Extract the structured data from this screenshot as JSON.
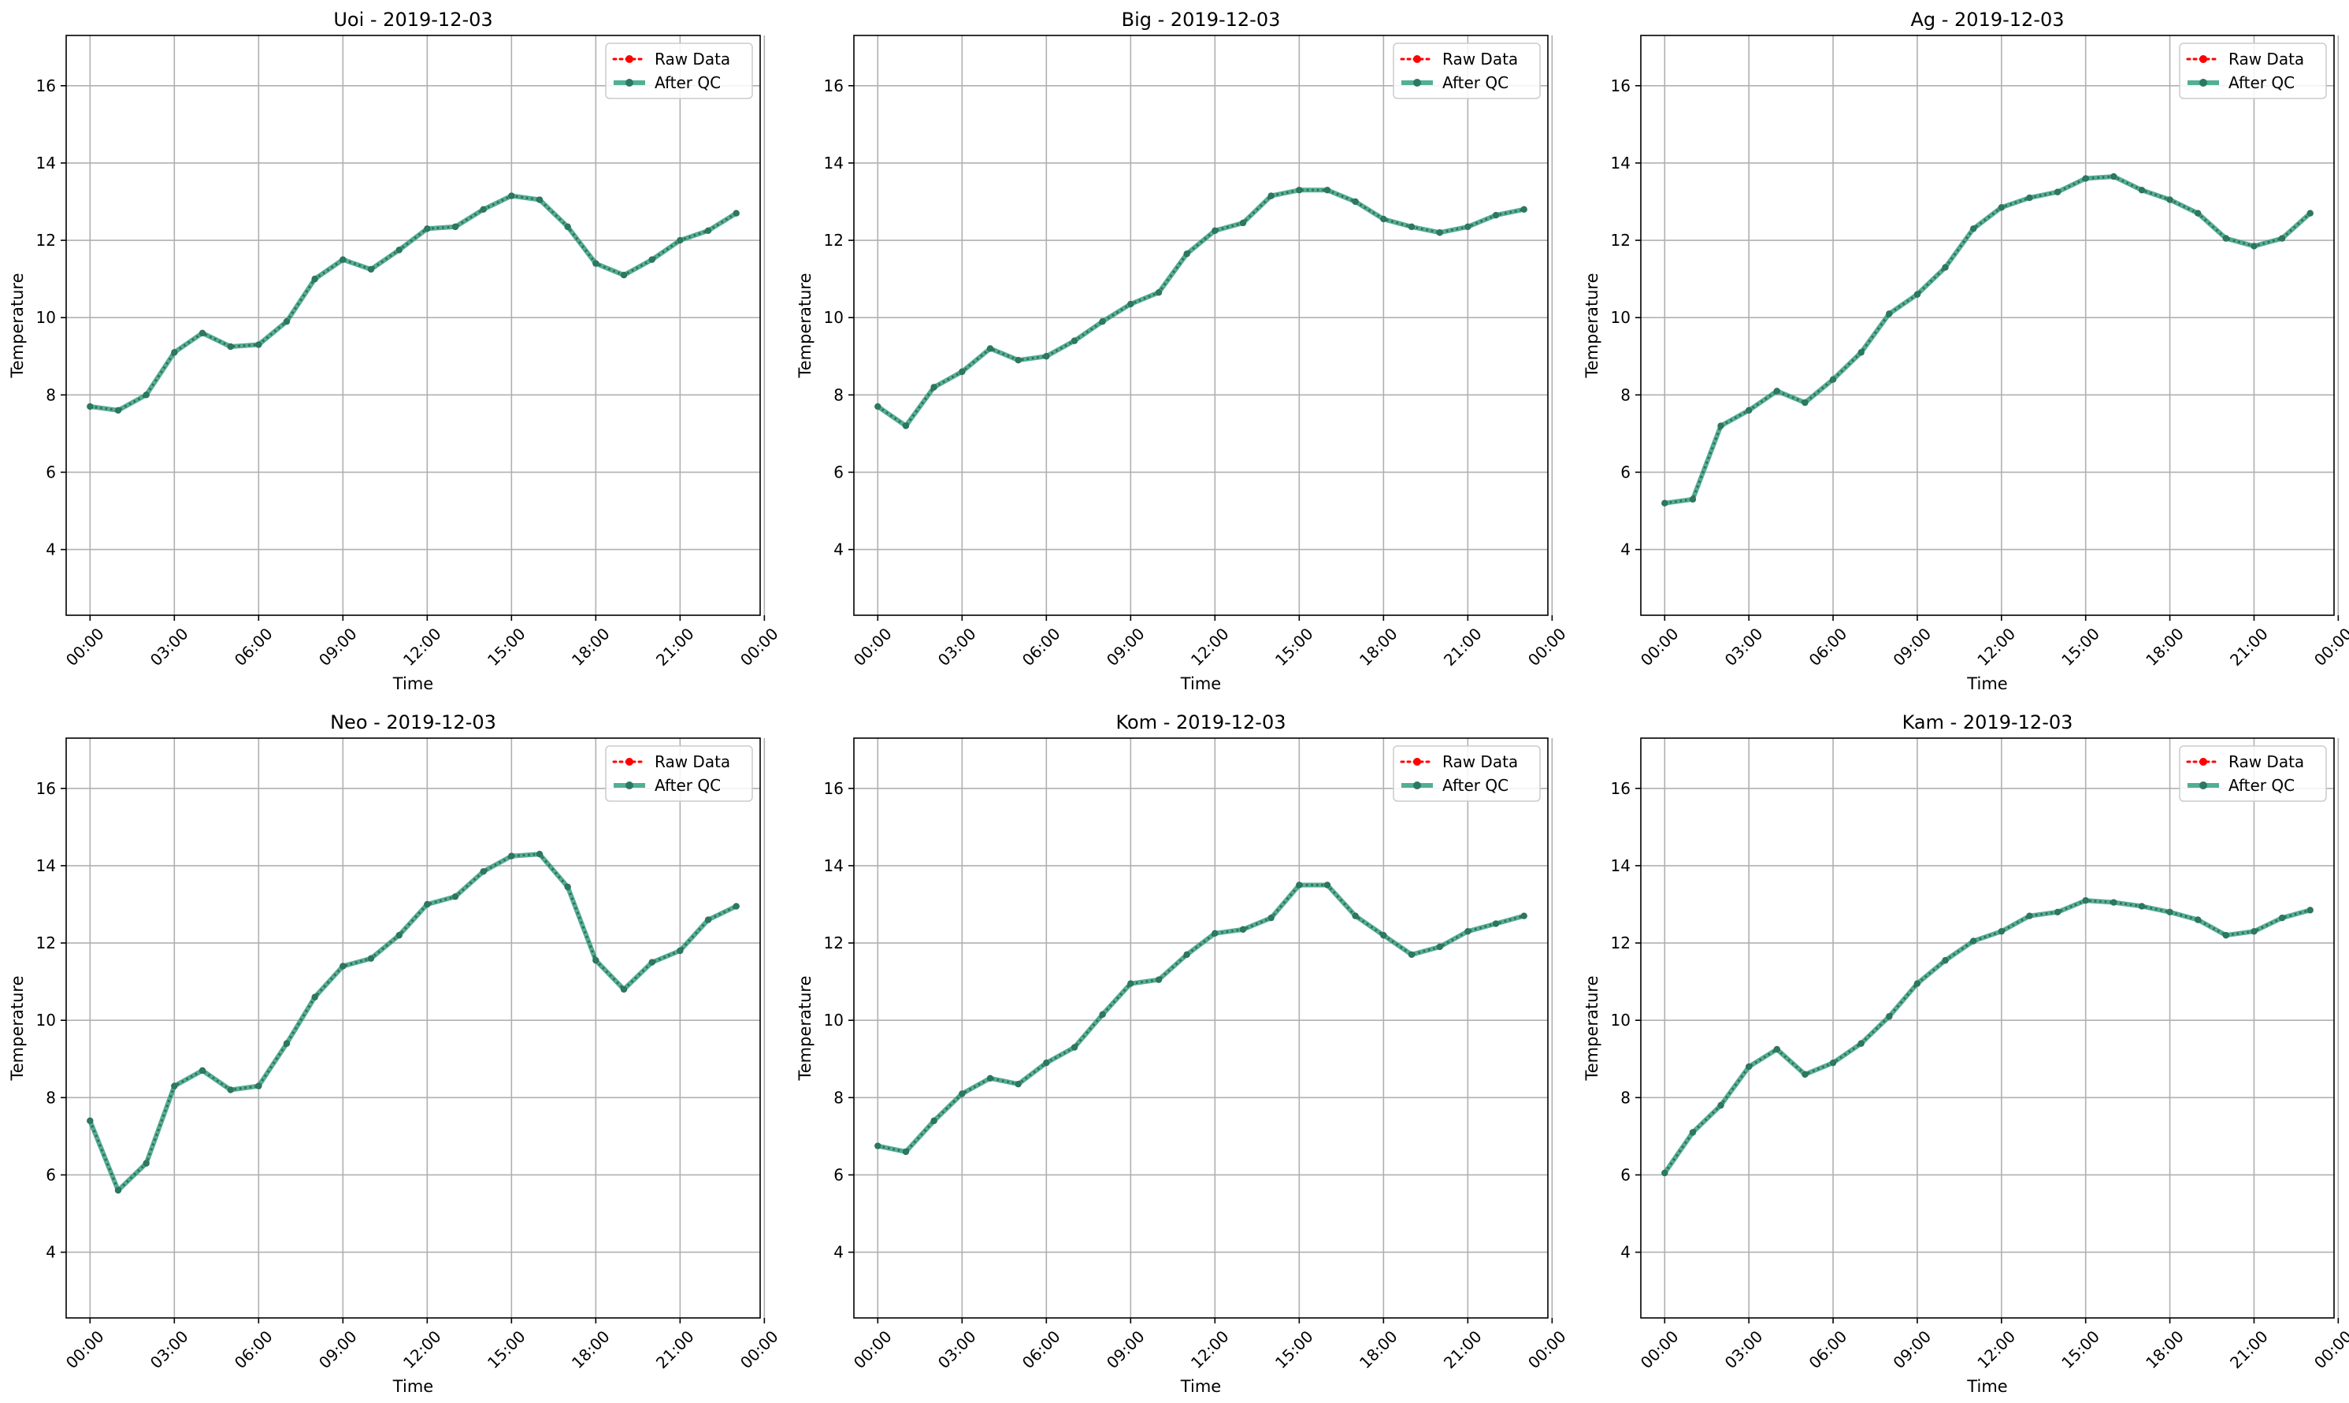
{
  "chart_data": [
    {
      "type": "line",
      "title": "Uoi - 2019-12-03",
      "xlabel": "Time",
      "ylabel": "Temperature",
      "ylim": [
        2.3,
        17.3
      ],
      "xlim": [
        -0.85,
        23.85
      ],
      "yticks": [
        4,
        6,
        8,
        10,
        12,
        14,
        16
      ],
      "xticks": [
        0,
        3,
        6,
        9,
        12,
        15,
        18,
        21,
        24
      ],
      "xtick_labels": [
        "00:00",
        "03:00",
        "06:00",
        "09:00",
        "12:00",
        "15:00",
        "18:00",
        "21:00",
        "00:00"
      ],
      "grid": true,
      "legend_position": "top-right",
      "x": [
        0,
        1,
        2,
        3,
        4,
        5,
        6,
        7,
        8,
        9,
        10,
        11,
        12,
        13,
        14,
        15,
        16,
        17,
        18,
        19,
        20,
        21,
        22,
        23
      ],
      "series": [
        {
          "name": "Raw Data",
          "color": "#ff0000",
          "style": "dotted",
          "values": [
            7.7,
            7.6,
            8.0,
            9.1,
            9.6,
            9.25,
            9.3,
            9.9,
            11.0,
            11.5,
            11.25,
            11.75,
            12.3,
            12.35,
            12.8,
            13.15,
            13.05,
            12.35,
            11.4,
            11.1,
            11.5,
            12.0,
            12.25,
            12.7
          ]
        },
        {
          "name": "After QC",
          "color": "#33a183",
          "style": "solid",
          "values": [
            7.7,
            7.6,
            8.0,
            9.1,
            9.6,
            9.25,
            9.3,
            9.9,
            11.0,
            11.5,
            11.25,
            11.75,
            12.3,
            12.35,
            12.8,
            13.15,
            13.05,
            12.35,
            11.4,
            11.1,
            11.5,
            12.0,
            12.25,
            12.7
          ]
        }
      ]
    },
    {
      "type": "line",
      "title": "Big - 2019-12-03",
      "xlabel": "Time",
      "ylabel": "Temperature",
      "ylim": [
        2.3,
        17.3
      ],
      "xlim": [
        -0.85,
        23.85
      ],
      "yticks": [
        4,
        6,
        8,
        10,
        12,
        14,
        16
      ],
      "xticks": [
        0,
        3,
        6,
        9,
        12,
        15,
        18,
        21,
        24
      ],
      "xtick_labels": [
        "00:00",
        "03:00",
        "06:00",
        "09:00",
        "12:00",
        "15:00",
        "18:00",
        "21:00",
        "00:00"
      ],
      "grid": true,
      "legend_position": "top-right",
      "x": [
        0,
        1,
        2,
        3,
        4,
        5,
        6,
        7,
        8,
        9,
        10,
        11,
        12,
        13,
        14,
        15,
        16,
        17,
        18,
        19,
        20,
        21,
        22,
        23
      ],
      "series": [
        {
          "name": "Raw Data",
          "color": "#ff0000",
          "style": "dotted",
          "values": [
            7.7,
            7.2,
            8.2,
            8.6,
            9.2,
            8.9,
            9.0,
            9.4,
            9.9,
            10.35,
            10.65,
            11.65,
            12.25,
            12.45,
            13.15,
            13.3,
            13.3,
            13.0,
            12.55,
            12.35,
            12.2,
            12.35,
            12.65,
            12.8
          ]
        },
        {
          "name": "After QC",
          "color": "#33a183",
          "style": "solid",
          "values": [
            7.7,
            7.2,
            8.2,
            8.6,
            9.2,
            8.9,
            9.0,
            9.4,
            9.9,
            10.35,
            10.65,
            11.65,
            12.25,
            12.45,
            13.15,
            13.3,
            13.3,
            13.0,
            12.55,
            12.35,
            12.2,
            12.35,
            12.65,
            12.8
          ]
        }
      ]
    },
    {
      "type": "line",
      "title": "Ag - 2019-12-03",
      "xlabel": "Time",
      "ylabel": "Temperature",
      "ylim": [
        2.3,
        17.3
      ],
      "xlim": [
        -0.85,
        23.85
      ],
      "yticks": [
        4,
        6,
        8,
        10,
        12,
        14,
        16
      ],
      "xticks": [
        0,
        3,
        6,
        9,
        12,
        15,
        18,
        21,
        24
      ],
      "xtick_labels": [
        "00:00",
        "03:00",
        "06:00",
        "09:00",
        "12:00",
        "15:00",
        "18:00",
        "21:00",
        "00:00"
      ],
      "grid": true,
      "legend_position": "top-right",
      "x": [
        0,
        1,
        2,
        3,
        4,
        5,
        6,
        7,
        8,
        9,
        10,
        11,
        12,
        13,
        14,
        15,
        16,
        17,
        18,
        19,
        20,
        21,
        22,
        23
      ],
      "series": [
        {
          "name": "Raw Data",
          "color": "#ff0000",
          "style": "dotted",
          "values": [
            5.2,
            5.3,
            7.2,
            7.6,
            8.1,
            7.8,
            8.4,
            9.1,
            10.1,
            10.6,
            11.3,
            12.3,
            12.85,
            13.1,
            13.25,
            13.6,
            13.65,
            13.3,
            13.05,
            12.7,
            12.05,
            11.85,
            12.05,
            12.7
          ]
        },
        {
          "name": "After QC",
          "color": "#33a183",
          "style": "solid",
          "values": [
            5.2,
            5.3,
            7.2,
            7.6,
            8.1,
            7.8,
            8.4,
            9.1,
            10.1,
            10.6,
            11.3,
            12.3,
            12.85,
            13.1,
            13.25,
            13.6,
            13.65,
            13.3,
            13.05,
            12.7,
            12.05,
            11.85,
            12.05,
            12.7
          ]
        }
      ]
    },
    {
      "type": "line",
      "title": "Neo - 2019-12-03",
      "xlabel": "Time",
      "ylabel": "Temperature",
      "ylim": [
        2.3,
        17.3
      ],
      "xlim": [
        -0.85,
        23.85
      ],
      "yticks": [
        4,
        6,
        8,
        10,
        12,
        14,
        16
      ],
      "xticks": [
        0,
        3,
        6,
        9,
        12,
        15,
        18,
        21,
        24
      ],
      "xtick_labels": [
        "00:00",
        "03:00",
        "06:00",
        "09:00",
        "12:00",
        "15:00",
        "18:00",
        "21:00",
        "00:00"
      ],
      "grid": true,
      "legend_position": "top-right",
      "x": [
        0,
        1,
        2,
        3,
        4,
        5,
        6,
        7,
        8,
        9,
        10,
        11,
        12,
        13,
        14,
        15,
        16,
        17,
        18,
        19,
        20,
        21,
        22,
        23
      ],
      "series": [
        {
          "name": "Raw Data",
          "color": "#ff0000",
          "style": "dotted",
          "values": [
            7.4,
            5.6,
            6.3,
            8.3,
            8.7,
            8.2,
            8.3,
            9.4,
            10.6,
            11.4,
            11.6,
            12.2,
            13.0,
            13.2,
            13.85,
            14.25,
            14.3,
            13.45,
            11.55,
            10.8,
            11.5,
            11.8,
            12.6,
            12.95
          ]
        },
        {
          "name": "After QC",
          "color": "#33a183",
          "style": "solid",
          "values": [
            7.4,
            5.6,
            6.3,
            8.3,
            8.7,
            8.2,
            8.3,
            9.4,
            10.6,
            11.4,
            11.6,
            12.2,
            13.0,
            13.2,
            13.85,
            14.25,
            14.3,
            13.45,
            11.55,
            10.8,
            11.5,
            11.8,
            12.6,
            12.95
          ]
        }
      ]
    },
    {
      "type": "line",
      "title": "Kom - 2019-12-03",
      "xlabel": "Time",
      "ylabel": "Temperature",
      "ylim": [
        2.3,
        17.3
      ],
      "xlim": [
        -0.85,
        23.85
      ],
      "yticks": [
        4,
        6,
        8,
        10,
        12,
        14,
        16
      ],
      "xticks": [
        0,
        3,
        6,
        9,
        12,
        15,
        18,
        21,
        24
      ],
      "xtick_labels": [
        "00:00",
        "03:00",
        "06:00",
        "09:00",
        "12:00",
        "15:00",
        "18:00",
        "21:00",
        "00:00"
      ],
      "grid": true,
      "legend_position": "top-right",
      "x": [
        0,
        1,
        2,
        3,
        4,
        5,
        6,
        7,
        8,
        9,
        10,
        11,
        12,
        13,
        14,
        15,
        16,
        17,
        18,
        19,
        20,
        21,
        22,
        23
      ],
      "series": [
        {
          "name": "Raw Data",
          "color": "#ff0000",
          "style": "dotted",
          "values": [
            6.75,
            6.6,
            7.4,
            8.1,
            8.5,
            8.35,
            8.9,
            9.3,
            10.15,
            10.95,
            11.05,
            11.7,
            12.25,
            12.35,
            12.65,
            13.5,
            13.5,
            12.7,
            12.2,
            11.7,
            11.9,
            12.3,
            12.5,
            12.7
          ]
        },
        {
          "name": "After QC",
          "color": "#33a183",
          "style": "solid",
          "values": [
            6.75,
            6.6,
            7.4,
            8.1,
            8.5,
            8.35,
            8.9,
            9.3,
            10.15,
            10.95,
            11.05,
            11.7,
            12.25,
            12.35,
            12.65,
            13.5,
            13.5,
            12.7,
            12.2,
            11.7,
            11.9,
            12.3,
            12.5,
            12.7
          ]
        }
      ]
    },
    {
      "type": "line",
      "title": "Kam - 2019-12-03",
      "xlabel": "Time",
      "ylabel": "Temperature",
      "ylim": [
        2.3,
        17.3
      ],
      "xlim": [
        -0.85,
        23.85
      ],
      "yticks": [
        4,
        6,
        8,
        10,
        12,
        14,
        16
      ],
      "xticks": [
        0,
        3,
        6,
        9,
        12,
        15,
        18,
        21,
        24
      ],
      "xtick_labels": [
        "00:00",
        "03:00",
        "06:00",
        "09:00",
        "12:00",
        "15:00",
        "18:00",
        "21:00",
        "00:00"
      ],
      "grid": true,
      "legend_position": "top-right",
      "x": [
        0,
        1,
        2,
        3,
        4,
        5,
        6,
        7,
        8,
        9,
        10,
        11,
        12,
        13,
        14,
        15,
        16,
        17,
        18,
        19,
        20,
        21,
        22,
        23
      ],
      "series": [
        {
          "name": "Raw Data",
          "color": "#ff0000",
          "style": "dotted",
          "values": [
            6.05,
            7.1,
            7.8,
            8.8,
            9.25,
            8.6,
            8.9,
            9.4,
            10.1,
            10.95,
            11.55,
            12.05,
            12.3,
            12.7,
            12.8,
            13.1,
            13.05,
            12.95,
            12.8,
            12.6,
            12.2,
            12.3,
            12.65,
            12.85
          ]
        },
        {
          "name": "After QC",
          "color": "#33a183",
          "style": "solid",
          "values": [
            6.05,
            7.1,
            7.8,
            8.8,
            9.25,
            8.6,
            8.9,
            9.4,
            10.1,
            10.95,
            11.55,
            12.05,
            12.3,
            12.7,
            12.8,
            13.1,
            13.05,
            12.95,
            12.8,
            12.6,
            12.2,
            12.3,
            12.65,
            12.85
          ]
        }
      ]
    }
  ]
}
